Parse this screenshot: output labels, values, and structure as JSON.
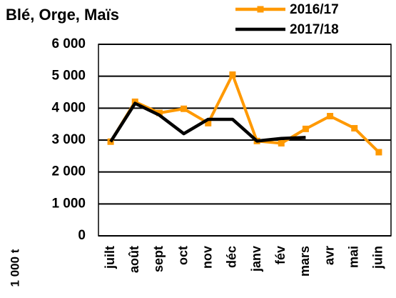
{
  "chart_data": {
    "type": "line",
    "title": "Blé, Orge, Maïs",
    "y_label": "1 000 t",
    "categories": [
      "juilt",
      "août",
      "sept",
      "oct",
      "nov",
      "déc",
      "janv",
      "fév",
      "mars",
      "avr",
      "mai",
      "juin"
    ],
    "series": [
      {
        "name": "2016/17",
        "color": "#ff9900",
        "values": [
          2950,
          4200,
          3850,
          3980,
          3530,
          5050,
          2970,
          2900,
          3350,
          3750,
          3370,
          2620
        ]
      },
      {
        "name": "2017/18",
        "color": "#000000",
        "values": [
          2950,
          4150,
          3780,
          3200,
          3650,
          3650,
          2970,
          3050,
          3080,
          null,
          null,
          null
        ]
      }
    ],
    "ylim": [
      0,
      6000
    ],
    "yticks": [
      {
        "value": 0,
        "label": "0"
      },
      {
        "value": 1000,
        "label": "1 000"
      },
      {
        "value": 2000,
        "label": "2 000"
      },
      {
        "value": 3000,
        "label": "3 000"
      },
      {
        "value": 4000,
        "label": "4 000"
      },
      {
        "value": 5000,
        "label": "5 000"
      },
      {
        "value": 6000,
        "label": "6 000"
      }
    ],
    "grid": true
  }
}
